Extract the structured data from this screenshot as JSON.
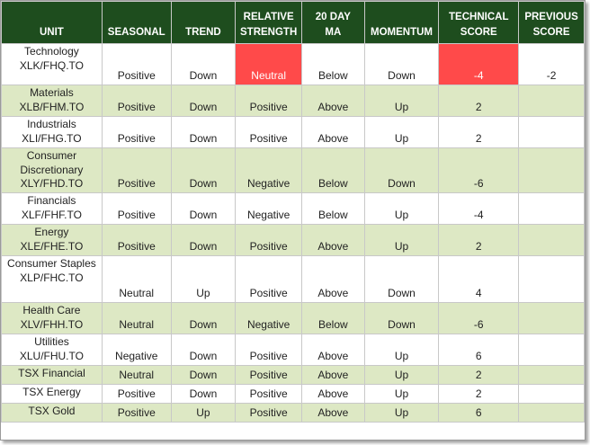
{
  "headers": {
    "unit": "UNIT",
    "seasonal": "SEASONAL",
    "trend": "TREND",
    "rs_line1": "RELATIVE",
    "rs_line2": "STRENGTH",
    "ma_line1": "20 DAY",
    "ma_line2": "MA",
    "momentum": "MOMENTUM",
    "tech_line1": "TECHNICAL",
    "tech_line2": "SCORE",
    "prev_line1": "PREVIOUS",
    "prev_line2": "SCORE"
  },
  "colors": {
    "header_bg": "#1e4d1e",
    "alt_row_bg": "#dde8c4",
    "highlight_red": "#ff4a4a"
  },
  "rows": [
    {
      "unit_lines": [
        "Technology",
        "XLK/FHQ.TO"
      ],
      "seasonal": "Positive",
      "trend": "Down",
      "relative_strength": "Neutral",
      "ma": "Below",
      "momentum": "Down",
      "score": "-4",
      "previous": "-2"
    },
    {
      "unit_lines": [
        "Materials",
        "XLB/FHM.TO"
      ],
      "seasonal": "Positive",
      "trend": "Down",
      "relative_strength": "Positive",
      "ma": "Above",
      "momentum": "Up",
      "score": "2",
      "previous": ""
    },
    {
      "unit_lines": [
        "Industrials",
        "XLI/FHG.TO"
      ],
      "seasonal": "Positive",
      "trend": "Down",
      "relative_strength": "Positive",
      "ma": "Above",
      "momentum": "Up",
      "score": "2",
      "previous": ""
    },
    {
      "unit_lines": [
        "Consumer",
        "Discretionary",
        "XLY/FHD.TO"
      ],
      "seasonal": "Positive",
      "trend": "Down",
      "relative_strength": "Negative",
      "ma": "Below",
      "momentum": "Down",
      "score": "-6",
      "previous": ""
    },
    {
      "unit_lines": [
        "Financials",
        "XLF/FHF.TO"
      ],
      "seasonal": "Positive",
      "trend": "Down",
      "relative_strength": "Negative",
      "ma": "Below",
      "momentum": "Up",
      "score": "-4",
      "previous": ""
    },
    {
      "unit_lines": [
        "Energy",
        "XLE/FHE.TO"
      ],
      "seasonal": "Positive",
      "trend": "Down",
      "relative_strength": "Positive",
      "ma": "Above",
      "momentum": "Up",
      "score": "2",
      "previous": ""
    },
    {
      "unit_lines": [
        "Consumer Staples",
        "XLP/FHC.TO"
      ],
      "seasonal": "Neutral",
      "trend": "Up",
      "relative_strength": "Positive",
      "ma": "Above",
      "momentum": "Down",
      "score": "4",
      "previous": ""
    },
    {
      "unit_lines": [
        "Health Care",
        "XLV/FHH.TO"
      ],
      "seasonal": "Neutral",
      "trend": "Down",
      "relative_strength": "Negative",
      "ma": "Below",
      "momentum": "Down",
      "score": "-6",
      "previous": ""
    },
    {
      "unit_lines": [
        "Utilities",
        "XLU/FHU.TO"
      ],
      "seasonal": "Negative",
      "trend": "Down",
      "relative_strength": "Positive",
      "ma": "Above",
      "momentum": "Up",
      "score": "6",
      "previous": ""
    },
    {
      "unit_lines": [
        "TSX Financial"
      ],
      "seasonal": "Neutral",
      "trend": "Down",
      "relative_strength": "Positive",
      "ma": "Above",
      "momentum": "Up",
      "score": "2",
      "previous": ""
    },
    {
      "unit_lines": [
        "TSX Energy"
      ],
      "seasonal": "Positive",
      "trend": "Down",
      "relative_strength": "Positive",
      "ma": "Above",
      "momentum": "Up",
      "score": "2",
      "previous": ""
    },
    {
      "unit_lines": [
        "TSX Gold"
      ],
      "seasonal": "Positive",
      "trend": "Up",
      "relative_strength": "Positive",
      "ma": "Above",
      "momentum": "Up",
      "score": "6",
      "previous": ""
    }
  ]
}
